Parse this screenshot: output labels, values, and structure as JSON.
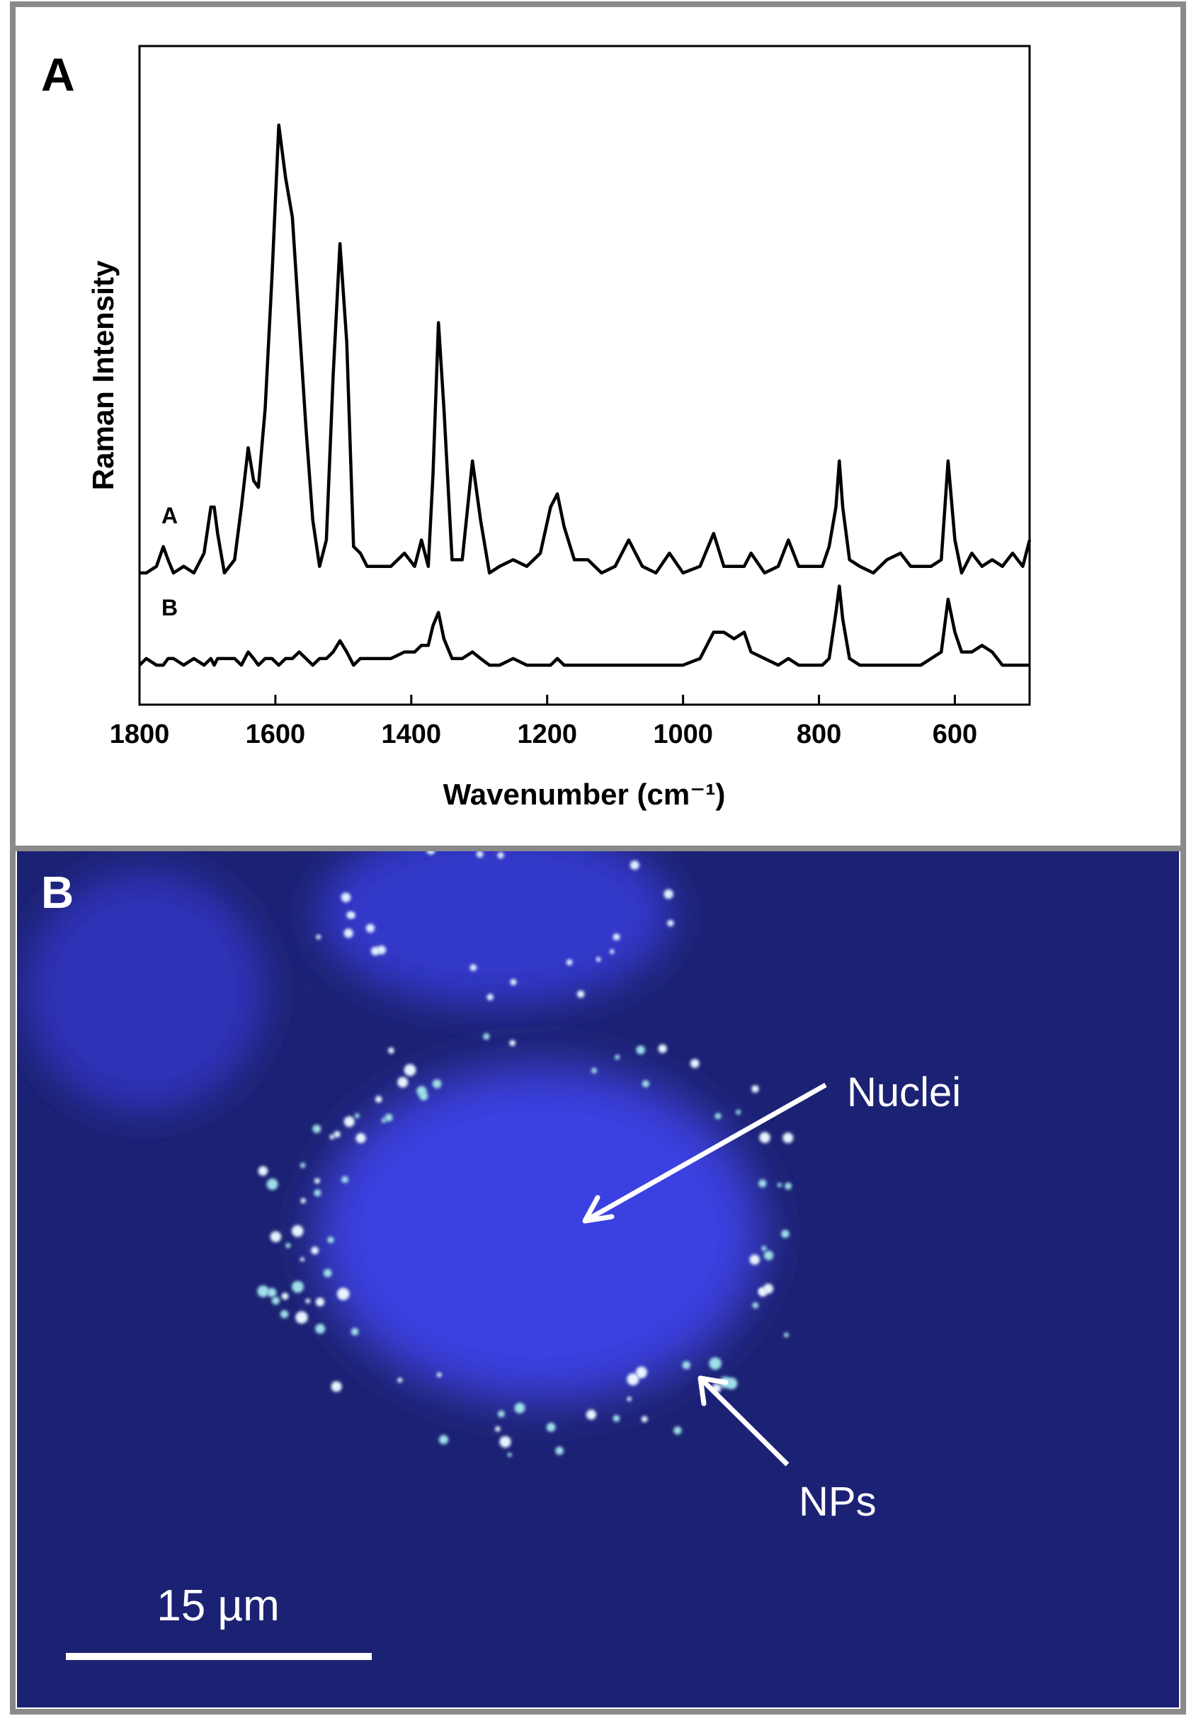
{
  "panel_labels": [
    "A",
    "B"
  ],
  "chart_data": {
    "type": "line",
    "x_label": "Wavenumber (cm⁻¹)",
    "y_label": "Raman Intensity",
    "x": [
      1800,
      1790,
      1775,
      1765,
      1758,
      1750,
      1735,
      1720,
      1705,
      1695,
      1690,
      1685,
      1675,
      1660,
      1650,
      1640,
      1632,
      1625,
      1615,
      1605,
      1595,
      1585,
      1575,
      1565,
      1555,
      1545,
      1535,
      1525,
      1515,
      1505,
      1495,
      1485,
      1475,
      1465,
      1450,
      1430,
      1410,
      1395,
      1385,
      1375,
      1368,
      1360,
      1352,
      1340,
      1325,
      1310,
      1298,
      1285,
      1270,
      1250,
      1230,
      1210,
      1195,
      1185,
      1175,
      1160,
      1140,
      1120,
      1100,
      1080,
      1060,
      1040,
      1020,
      1000,
      975,
      955,
      940,
      925,
      910,
      900,
      880,
      860,
      845,
      830,
      810,
      795,
      785,
      775,
      770,
      765,
      755,
      740,
      720,
      700,
      680,
      665,
      650,
      635,
      620,
      610,
      600,
      590,
      575,
      560,
      545,
      530,
      515,
      500,
      490
    ],
    "series": [
      {
        "name": "A",
        "color": "#000000",
        "values": [
          20,
          20,
          21,
          24,
          22,
          20,
          21,
          20,
          23,
          30,
          30,
          26,
          20,
          22,
          30,
          39,
          34,
          33,
          45,
          65,
          88,
          80,
          74,
          58,
          42,
          28,
          21,
          25,
          50,
          70,
          55,
          24,
          23,
          21,
          21,
          21,
          23,
          21,
          25,
          21,
          35,
          58,
          45,
          22,
          22,
          37,
          28,
          20,
          21,
          22,
          21,
          23,
          30,
          32,
          27,
          22,
          22,
          20,
          21,
          25,
          21,
          20,
          23,
          20,
          21,
          26,
          21,
          21,
          21,
          23,
          20,
          21,
          25,
          21,
          21,
          21,
          24,
          30,
          37,
          30,
          22,
          21,
          20,
          22,
          23,
          21,
          21,
          21,
          22,
          37,
          25,
          20,
          23,
          21,
          22,
          21,
          23,
          21,
          25
        ]
      },
      {
        "name": "B",
        "color": "#000000",
        "values": [
          6,
          7,
          6,
          6,
          7,
          7,
          6,
          7,
          6,
          7,
          6,
          7,
          7,
          7,
          6,
          8,
          7,
          6,
          7,
          7,
          6,
          7,
          7,
          8,
          7,
          6,
          7,
          7,
          8,
          9.7,
          8,
          6,
          7,
          7,
          7,
          7,
          8,
          8,
          9,
          9,
          12,
          14,
          10,
          7,
          7,
          8,
          7,
          6,
          6,
          7,
          6,
          6,
          6,
          7,
          6,
          6,
          6,
          6,
          6,
          6,
          6,
          6,
          6,
          6,
          7,
          11,
          11,
          10,
          11,
          8,
          7,
          6,
          7,
          6,
          6,
          6,
          7,
          14,
          18,
          13,
          7,
          6,
          6,
          6,
          6,
          6,
          6,
          7,
          8,
          16,
          11,
          8,
          8,
          9,
          8,
          6,
          6,
          6,
          6
        ]
      }
    ],
    "xlim": [
      1800,
      490
    ],
    "xticks": [
      1800,
      1600,
      1400,
      1200,
      1000,
      800,
      600
    ],
    "ylim": [
      0,
      100
    ],
    "grid": false
  },
  "image": {
    "annotations": [
      "Nuclei",
      "NPs"
    ],
    "scale_bar": "15 µm"
  }
}
